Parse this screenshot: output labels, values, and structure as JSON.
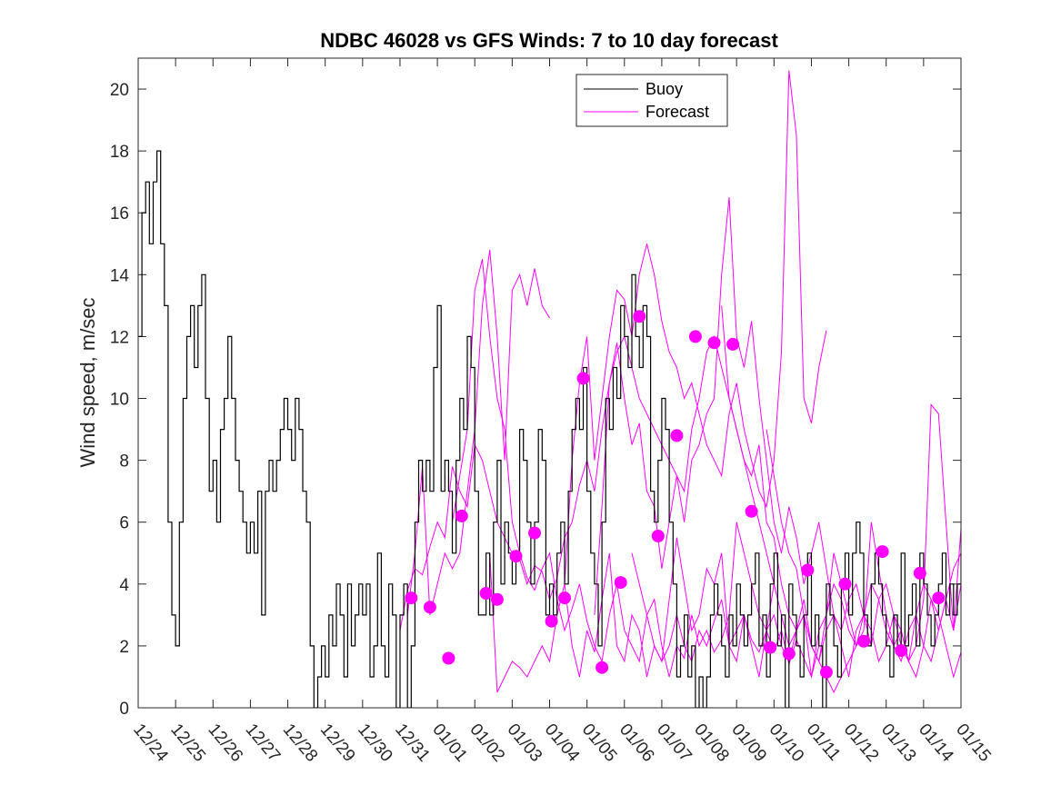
{
  "chart_data": {
    "type": "line",
    "title": "NDBC 46028 vs GFS Winds: 7 to 10 day forecast",
    "xlabel": "",
    "ylabel": "Wind speed, m/sec",
    "xlim": [
      0,
      22
    ],
    "ylim": [
      0,
      21
    ],
    "yticks": [
      0,
      2,
      4,
      6,
      8,
      10,
      12,
      14,
      16,
      18,
      20
    ],
    "xtick_labels": [
      "12/24",
      "12/25",
      "12/26",
      "12/27",
      "12/28",
      "12/29",
      "12/30",
      "12/31",
      "01/01",
      "01/02",
      "01/03",
      "01/04",
      "01/05",
      "01/06",
      "01/07",
      "01/08",
      "01/09",
      "01/10",
      "01/11",
      "01/12",
      "01/13",
      "01/14",
      "01/15"
    ],
    "x_unit": "days since 12/24",
    "legend": {
      "position": "top-center",
      "entries": [
        "Buoy",
        "Forecast"
      ]
    },
    "colors": {
      "buoy": "#000000",
      "forecast": "#ff00ff"
    },
    "buoy": {
      "name": "Buoy",
      "x": [
        0,
        0.1,
        0.2,
        0.3,
        0.4,
        0.5,
        0.6,
        0.7,
        0.8,
        0.9,
        1.0,
        1.1,
        1.2,
        1.3,
        1.4,
        1.5,
        1.6,
        1.7,
        1.8,
        1.9,
        2.0,
        2.1,
        2.2,
        2.3,
        2.4,
        2.5,
        2.6,
        2.7,
        2.8,
        2.9,
        3.0,
        3.1,
        3.2,
        3.3,
        3.4,
        3.5,
        3.6,
        3.7,
        3.8,
        3.9,
        4.0,
        4.1,
        4.2,
        4.3,
        4.4,
        4.5,
        4.6,
        4.7,
        4.8,
        4.9,
        5.0,
        5.1,
        5.2,
        5.3,
        5.4,
        5.5,
        5.6,
        5.7,
        5.8,
        5.9,
        6.0,
        6.1,
        6.2,
        6.3,
        6.4,
        6.5,
        6.6,
        6.7,
        6.8,
        6.9,
        7.0,
        7.1,
        7.2,
        7.3,
        7.4,
        7.5,
        7.6,
        7.7,
        7.8,
        7.9,
        8.0,
        8.1,
        8.2,
        8.3,
        8.4,
        8.5,
        8.6,
        8.7,
        8.8,
        8.9,
        9.0,
        9.1,
        9.2,
        9.3,
        9.4,
        9.5,
        9.6,
        9.7,
        9.8,
        9.9,
        10.0,
        10.1,
        10.2,
        10.3,
        10.4,
        10.5,
        10.6,
        10.7,
        10.8,
        10.9,
        11.0,
        11.1,
        11.2,
        11.3,
        11.4,
        11.5,
        11.6,
        11.7,
        11.8,
        11.9,
        12.0,
        12.1,
        12.2,
        12.3,
        12.4,
        12.5,
        12.6,
        12.7,
        12.8,
        12.9,
        13.0,
        13.1,
        13.2,
        13.3,
        13.4,
        13.5,
        13.6,
        13.7,
        13.8,
        13.9,
        14.0,
        14.1,
        14.2,
        14.3,
        14.4,
        14.5,
        14.6,
        14.7,
        14.8,
        14.9,
        15.0,
        15.1,
        15.2,
        15.3,
        15.4,
        15.5,
        15.6,
        15.7,
        15.8,
        15.9,
        16.0,
        16.1,
        16.2,
        16.3,
        16.4,
        16.5,
        16.6,
        16.7,
        16.8,
        16.9,
        17.0,
        17.1,
        17.2,
        17.3,
        17.4,
        17.5,
        17.6,
        17.7,
        17.8,
        17.9,
        18.0,
        18.1,
        18.2,
        18.3,
        18.4,
        18.5,
        18.6,
        18.7,
        18.8,
        18.9,
        19.0,
        19.1,
        19.2,
        19.3,
        19.4,
        19.5,
        19.6,
        19.7,
        19.8,
        19.9,
        20.0,
        20.1,
        20.2,
        20.3,
        20.4,
        20.5,
        20.6,
        20.7,
        20.8,
        20.9,
        21.0,
        21.1,
        21.2,
        21.3,
        21.4,
        21.5,
        21.6,
        21.7,
        21.8,
        21.9,
        22.0
      ],
      "y": [
        12,
        16,
        17,
        15,
        17,
        18,
        15,
        13,
        6,
        3,
        2,
        6,
        10,
        12,
        13,
        11,
        13,
        14,
        10,
        7,
        8,
        6,
        9,
        10,
        12,
        10,
        8,
        7,
        6,
        5,
        6,
        5,
        7,
        3,
        7,
        8,
        7,
        8,
        9,
        10,
        9,
        8,
        10,
        9,
        7,
        6,
        2,
        0,
        1,
        2,
        1,
        3,
        2,
        4,
        3,
        1,
        4,
        2,
        3,
        4,
        3,
        4,
        1,
        2,
        5,
        2,
        1,
        4,
        3,
        0,
        3,
        4,
        0,
        2,
        6,
        8,
        7,
        8,
        7,
        11,
        13,
        7,
        8,
        7,
        5,
        8,
        10,
        9,
        12,
        11,
        7,
        3,
        3,
        5,
        3,
        6,
        8,
        4,
        6,
        5,
        4,
        5,
        9,
        8,
        6,
        4,
        6,
        9,
        8,
        3,
        4,
        3,
        5,
        6,
        4,
        7,
        9,
        10,
        9,
        11,
        7,
        5,
        4,
        2,
        6,
        10,
        9,
        11,
        10,
        13,
        12,
        11,
        14,
        12,
        11,
        13,
        12,
        7,
        6,
        8,
        10,
        9,
        6,
        4,
        1,
        2,
        3,
        1,
        2,
        0,
        1,
        0,
        1,
        3,
        4,
        3,
        2,
        1,
        3,
        2,
        4,
        3,
        2,
        3,
        4,
        5,
        2,
        3,
        1,
        4,
        5,
        2,
        3,
        0,
        4,
        3,
        2,
        1,
        3,
        5,
        2,
        3,
        2,
        0,
        4,
        3,
        2,
        1,
        4,
        5,
        3,
        5,
        6,
        5,
        3,
        2,
        4,
        5,
        4,
        3,
        2,
        1,
        3,
        2,
        5,
        2,
        3,
        4,
        2,
        5,
        4,
        3,
        2,
        3,
        4,
        5,
        3,
        4,
        3,
        4,
        5
      ]
    },
    "forecast_series": [
      {
        "name": "Forecast",
        "x": [
          7.0,
          7.2,
          7.4,
          7.6,
          7.8,
          8.0,
          8.2,
          8.4,
          8.6,
          8.8,
          9.0,
          9.2,
          9.4,
          9.6,
          9.8,
          10.0,
          10.2,
          10.4,
          10.6,
          10.8,
          11.0,
          11.2,
          11.4,
          11.6,
          11.8,
          12.0,
          12.2,
          12.4,
          12.6,
          12.8,
          13.0,
          13.2,
          13.4,
          13.6,
          13.8,
          14.0,
          14.2,
          14.4,
          14.6,
          14.8,
          15.0,
          15.2,
          15.4,
          15.6,
          15.8,
          16.0,
          16.2,
          16.4,
          16.6,
          16.8,
          17.0
        ],
        "y": [
          2.5,
          3.8,
          4.5,
          4.3,
          5.2,
          6.0,
          5.5,
          7.8,
          7.0,
          6.5,
          8.5,
          8.0,
          7.0,
          6.0,
          5.5,
          5.0,
          4.8,
          4.0,
          4.6,
          4.4,
          3.5,
          4.2,
          5.5,
          6.0,
          7.2,
          8.0,
          7.0,
          9.0,
          10.5,
          11.5,
          12.0,
          11.0,
          10.0,
          9.5,
          9.0,
          8.5,
          8.0,
          7.5,
          7.0,
          9.0,
          10.0,
          11.5,
          12.0,
          11.0,
          10.0,
          9.0,
          8.0,
          7.0,
          6.0,
          5.0,
          4.0
        ]
      },
      {
        "name": "Forecast",
        "x": [
          7.2,
          7.4,
          7.6,
          7.8,
          8.0,
          8.2,
          8.4,
          8.6,
          8.8,
          9.0,
          9.2,
          9.4,
          9.6,
          9.8,
          10.0,
          10.2,
          10.4,
          10.6,
          10.8,
          11.0
        ],
        "y": [
          3.0,
          5.0,
          7.8,
          3.0,
          4.0,
          5.0,
          4.5,
          5.0,
          7.0,
          9.0,
          13.0,
          14.8,
          12.0,
          8.0,
          13.5,
          14.0,
          13.0,
          14.2,
          13.0,
          12.6
        ]
      },
      {
        "name": "Forecast",
        "x": [
          8.4,
          8.6,
          8.8,
          9.0,
          9.2,
          9.4,
          9.6,
          9.8,
          10.0,
          10.2,
          10.4,
          10.6,
          10.8,
          11.0,
          11.2,
          11.4,
          11.6,
          11.8,
          12.0,
          12.2,
          12.4,
          12.6,
          12.8,
          13.0,
          13.2,
          13.4,
          13.6,
          13.8,
          14.0,
          14.2,
          14.4,
          14.6,
          14.8,
          15.0,
          15.2,
          15.4,
          15.6,
          15.8,
          16.0,
          16.2,
          16.4,
          16.6,
          16.8,
          17.0,
          17.2,
          17.4,
          17.6,
          17.8,
          18.0,
          18.2
        ],
        "y": [
          6.0,
          7.5,
          9.0,
          13.5,
          14.5,
          12.0,
          10.0,
          9.0,
          6.0,
          5.0,
          4.2,
          3.8,
          4.5,
          5.0,
          3.5,
          2.5,
          3.2,
          4.0,
          2.8,
          2.0,
          1.5,
          3.0,
          4.0,
          2.5,
          2.0,
          1.5,
          3.0,
          3.5,
          2.0,
          1.0,
          2.0,
          1.6,
          3.0,
          2.0,
          2.5,
          1.8,
          2.2,
          3.0,
          6.0,
          5.0,
          4.0,
          3.0,
          2.5,
          1.8,
          2.5,
          1.4,
          2.2,
          1.6,
          1.0,
          2.0
        ]
      },
      {
        "name": "Forecast",
        "x": [
          9.4,
          9.6,
          9.8,
          10.0,
          10.2,
          10.4,
          10.6,
          10.8,
          11.0,
          11.2,
          11.4,
          11.6,
          11.8,
          12.0,
          12.2,
          12.4,
          12.6,
          12.8,
          13.0,
          13.2,
          13.4,
          13.6,
          13.8,
          14.0,
          14.2,
          14.4,
          14.6,
          14.8,
          15.0,
          15.2,
          15.4,
          15.6,
          15.8,
          16.0,
          16.2,
          16.4,
          16.6,
          16.8,
          17.0,
          17.2,
          17.4,
          17.6,
          17.8,
          18.0,
          18.2,
          18.4,
          18.6,
          18.8,
          19.0,
          19.2
        ],
        "y": [
          5.0,
          0.5,
          1.0,
          1.5,
          1.3,
          1.0,
          1.5,
          2.0,
          1.5,
          3.0,
          4.0,
          2.0,
          1.0,
          2.5,
          1.8,
          3.5,
          5.0,
          2.0,
          1.5,
          3.0,
          2.5,
          1.0,
          2.0,
          1.5,
          3.5,
          5.5,
          4.0,
          2.5,
          3.0,
          4.5,
          4.0,
          5.0,
          2.0,
          1.5,
          3.0,
          2.0,
          1.0,
          2.5,
          3.0,
          2.0,
          1.5,
          2.5,
          3.0,
          2.0,
          1.5,
          1.0,
          0.5,
          1.0,
          1.5,
          2.0
        ]
      },
      {
        "name": "Forecast",
        "x": [
          11.4,
          11.6,
          11.8,
          12.0,
          12.2,
          12.4,
          12.6,
          12.8,
          13.0,
          13.2,
          13.4,
          13.6,
          13.8,
          14.0,
          14.2,
          14.4,
          14.6,
          14.8,
          15.0,
          15.2,
          15.4,
          15.6,
          15.8,
          16.0,
          16.2,
          16.4,
          16.6,
          16.8,
          17.0,
          17.2,
          17.4,
          17.6,
          17.8,
          18.0,
          18.2,
          18.4
        ],
        "y": [
          4.0,
          8.0,
          10.5,
          12.0,
          8.0,
          10.0,
          12.0,
          13.5,
          13.2,
          12.0,
          14.0,
          15.0,
          14.0,
          12.5,
          11.5,
          11.0,
          10.0,
          10.5,
          9.5,
          8.5,
          8.0,
          7.5,
          9.5,
          10.5,
          9.0,
          8.0,
          7.0,
          6.5,
          8.0,
          11.5,
          20.6,
          18.5,
          10.0,
          9.2,
          11.0,
          12.2
        ]
      },
      {
        "name": "Forecast",
        "x": [
          12.2,
          12.4,
          12.6,
          12.8,
          13.0,
          13.2,
          13.4,
          13.6,
          13.8,
          14.0,
          14.2,
          14.4,
          14.6,
          14.8,
          15.0,
          15.2,
          15.4,
          15.6,
          15.8,
          16.0,
          16.2,
          16.4,
          16.6,
          16.8,
          17.0,
          17.2,
          17.4,
          17.6,
          17.8,
          18.0,
          18.2,
          18.4,
          18.6,
          18.8,
          19.0,
          19.2,
          19.4,
          19.6,
          19.8,
          20.0,
          20.2,
          20.4,
          20.6,
          20.8,
          21.0,
          21.2,
          21.4,
          21.6,
          21.8,
          22.0
        ],
        "y": [
          3.0,
          6.5,
          10.5,
          11.8,
          10.0,
          8.5,
          9.2,
          7.0,
          6.5,
          4.5,
          6.0,
          7.5,
          6.0,
          8.0,
          8.5,
          9.5,
          10.0,
          14.0,
          16.5,
          12.0,
          11.0,
          12.5,
          10.0,
          8.0,
          6.0,
          5.0,
          6.5,
          5.5,
          4.0,
          5.0,
          6.0,
          4.5,
          3.0,
          2.5,
          3.5,
          4.0,
          3.0,
          2.0,
          3.5,
          4.0,
          3.0,
          2.5,
          1.5,
          2.0,
          3.5,
          9.8,
          9.5,
          6.0,
          2.5,
          4.0
        ]
      },
      {
        "name": "Forecast",
        "x": [
          13.2,
          13.4,
          13.6,
          13.8,
          14.0,
          14.2,
          14.4,
          14.6,
          14.8,
          15.0,
          15.2,
          15.4,
          15.6,
          15.8,
          16.0,
          16.2,
          16.4,
          16.6,
          16.8,
          17.0,
          17.2,
          17.4,
          17.6,
          17.8,
          18.0,
          18.2,
          18.4,
          18.6,
          18.8,
          19.0,
          19.2,
          19.4,
          19.6,
          19.8,
          20.0,
          20.2,
          20.4,
          20.6,
          20.8,
          21.0,
          21.2,
          21.4,
          21.6,
          21.8,
          22.0
        ],
        "y": [
          5.0,
          4.0,
          3.0,
          2.0,
          1.5,
          2.0,
          3.0,
          2.0,
          1.5,
          2.5,
          2.0,
          2.8,
          3.5,
          2.0,
          2.5,
          3.0,
          2.2,
          1.8,
          2.5,
          4.0,
          3.0,
          2.0,
          2.5,
          3.0,
          2.0,
          1.5,
          3.0,
          4.0,
          3.5,
          2.5,
          2.0,
          3.0,
          2.5,
          1.5,
          2.0,
          3.0,
          2.0,
          1.5,
          1.0,
          2.0,
          3.5,
          3.0,
          2.0,
          1.0,
          1.8
        ]
      },
      {
        "name": "Forecast",
        "x": [
          15.6,
          15.8,
          16.0,
          16.2,
          16.4,
          16.6,
          16.8,
          17.0,
          17.2,
          17.4,
          17.6,
          17.8,
          18.0,
          18.2,
          18.4,
          18.6,
          18.8,
          19.0,
          19.2,
          19.4,
          19.6,
          19.8,
          20.0,
          20.2,
          20.4,
          20.6,
          20.8,
          21.0,
          21.2,
          21.4,
          21.6,
          21.8,
          22.0
        ],
        "y": [
          13.0,
          10.0,
          9.0,
          8.0,
          7.5,
          8.5,
          6.0,
          5.5,
          4.0,
          3.0,
          2.5,
          3.5,
          2.0,
          1.5,
          2.5,
          3.0,
          2.0,
          1.0,
          2.5,
          3.0,
          4.0,
          3.5,
          2.5,
          2.0,
          1.5,
          2.5,
          3.0,
          2.0,
          1.5,
          2.5,
          3.5,
          2.5,
          5.8
        ]
      },
      {
        "name": "Forecast",
        "x": [
          16.8,
          17.0,
          17.2,
          17.4,
          17.6,
          17.8,
          18.0,
          18.2,
          18.4,
          18.6,
          18.8,
          19.0,
          19.2,
          19.4,
          19.6,
          19.8,
          20.0,
          20.2,
          20.4,
          20.6,
          20.8,
          21.0,
          21.2,
          21.4,
          21.6,
          21.8,
          22.0
        ],
        "y": [
          9.0,
          7.5,
          6.0,
          5.0,
          4.5,
          3.0,
          1.0,
          2.5,
          3.0,
          5.0,
          4.0,
          3.0,
          2.0,
          2.5,
          6.0,
          4.5,
          3.0,
          2.0,
          2.5,
          1.5,
          3.0,
          4.0,
          3.5,
          2.5,
          3.5,
          4.5,
          5.0
        ]
      }
    ],
    "forecast_markers": {
      "x": [
        7.3,
        7.8,
        8.3,
        8.65,
        9.3,
        9.6,
        10.1,
        10.6,
        11.05,
        11.4,
        11.9,
        12.4,
        12.9,
        13.4,
        13.9,
        14.4,
        14.9,
        15.4,
        15.9,
        16.4,
        16.9,
        17.4,
        17.9,
        18.4,
        18.9,
        19.4,
        19.9,
        20.4,
        20.9,
        21.4
      ],
      "y": [
        3.55,
        3.25,
        1.6,
        6.2,
        3.7,
        3.5,
        4.9,
        5.65,
        2.8,
        3.55,
        10.65,
        1.3,
        4.05,
        12.65,
        5.55,
        8.8,
        12.0,
        11.8,
        11.75,
        6.35,
        1.95,
        1.75,
        4.45,
        1.15,
        4.0,
        2.15,
        5.05,
        1.85,
        4.35,
        3.55
      ]
    }
  }
}
